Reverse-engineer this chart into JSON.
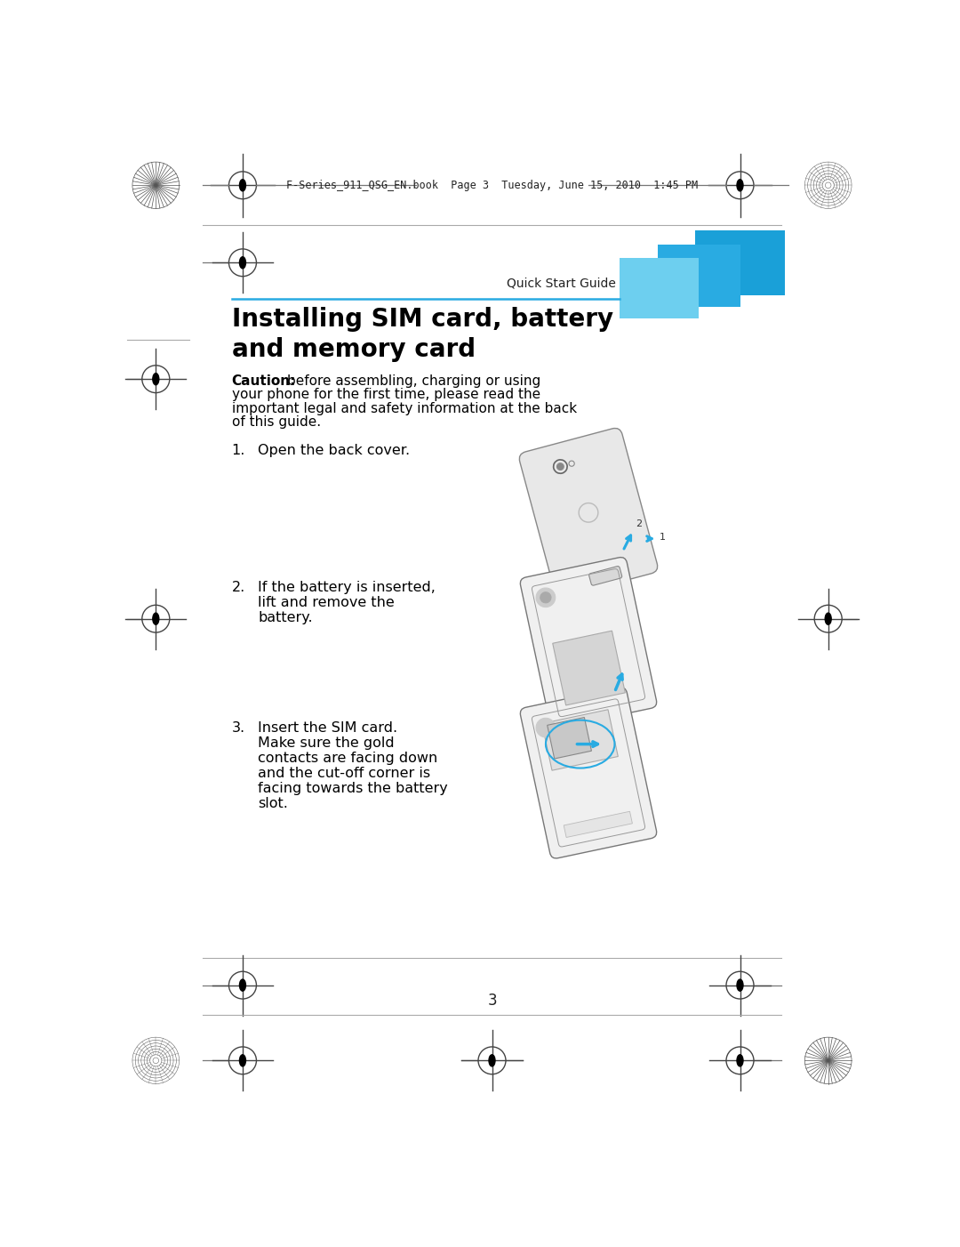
{
  "page_bg": "#ffffff",
  "header_text": "F-Series_911_QSG_EN.book  Page 3  Tuesday, June 15, 2010  1:45 PM",
  "header_fontsize": 8.5,
  "section_label": "Quick Start Guide",
  "section_label_fontsize": 10,
  "title_line1": "Installing SIM card, battery",
  "title_line2": "and memory card",
  "title_fontsize": 20,
  "caution_bold": "Caution:",
  "caution_rest": " before assembling, charging or using\nyour phone for the first time, please read the\nimportant legal and safety information at the back\nof this guide.",
  "step1_num": "1.",
  "step1_text": "Open the back cover.",
  "step2_num": "2.",
  "step2_text": "If the battery is inserted,\nlift and remove the\nbattery.",
  "step3_num": "3.",
  "step3_text": "Insert the SIM card.\nMake sure the gold\ncontacts are facing down\nand the cut-off corner is\nfacing towards the battery\nslot.",
  "page_number": "3",
  "blue_color": "#29abe2",
  "blue_mid": "#5bc8e8",
  "blue_light": "#8ddcf0",
  "line_color": "#29abe2",
  "body_fontsize": 11,
  "step_fontsize": 11.5,
  "text_color": "#000000",
  "gray_line": "#aaaaaa",
  "mark_color": "#444444"
}
